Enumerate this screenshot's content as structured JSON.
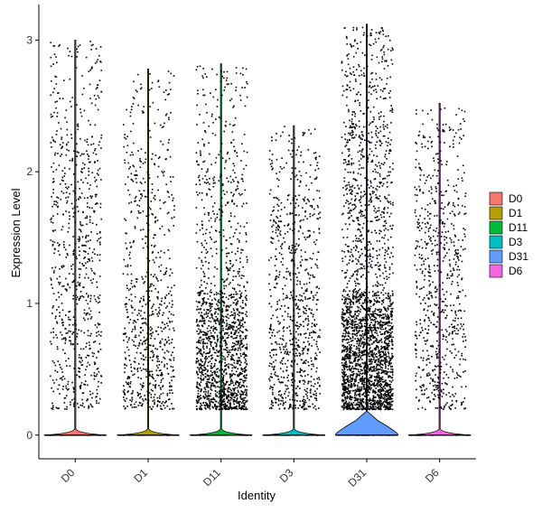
{
  "chart_data": {
    "type": "violin",
    "xlabel": "Identity",
    "ylabel": "Expression Level",
    "categories": [
      "D0",
      "D1",
      "D11",
      "D3",
      "D31",
      "D6"
    ],
    "ylim": [
      -0.18,
      3.27
    ],
    "yticks": [
      0,
      1,
      2,
      3
    ],
    "grid": false,
    "legend_position": "right",
    "legend": [
      {
        "label": "D0",
        "color": "#F8766D"
      },
      {
        "label": "D1",
        "color": "#B79F00"
      },
      {
        "label": "D11",
        "color": "#00BA38"
      },
      {
        "label": "D3",
        "color": "#00BFC4"
      },
      {
        "label": "D31",
        "color": "#619CFF"
      },
      {
        "label": "D6",
        "color": "#F564E3"
      }
    ],
    "series": [
      {
        "name": "D0",
        "max": 3.0,
        "zero_peak": 0.02,
        "points": 780,
        "dense_low": 0.0,
        "high_mode": 0.25
      },
      {
        "name": "D1",
        "max": 2.78,
        "zero_peak": 0.02,
        "points": 760,
        "dense_low": 0.35,
        "high_mode": 0.18
      },
      {
        "name": "D11",
        "max": 2.82,
        "zero_peak": 0.02,
        "points": 1650,
        "dense_low": 0.6,
        "high_mode": 0.2
      },
      {
        "name": "D3",
        "max": 2.35,
        "zero_peak": 0.02,
        "points": 850,
        "dense_low": 0.25,
        "high_mode": 0.2
      },
      {
        "name": "D31",
        "max": 3.12,
        "zero_peak": 0.5,
        "points": 2700,
        "dense_low": 0.55,
        "high_mode": 0.25
      },
      {
        "name": "D6",
        "max": 2.52,
        "zero_peak": 0.02,
        "points": 720,
        "dense_low": 0.1,
        "high_mode": 0.2
      }
    ]
  }
}
